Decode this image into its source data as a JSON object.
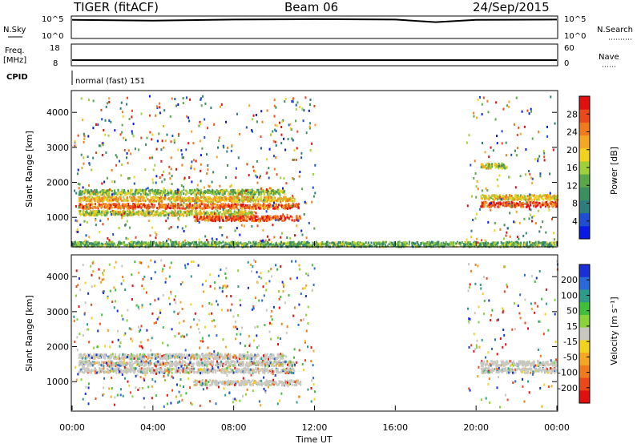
{
  "header": {
    "station": "TIGER (fitACF)",
    "beam": "Beam 06",
    "date": "24/Sep/2015"
  },
  "top_panels": {
    "nsky_label": "N.Sky",
    "nsky_ticks": [
      "10^5",
      "10^0"
    ],
    "nsearch_label": "N.Search",
    "freq_label": "Freq.",
    "freq_unit": "[MHz]",
    "freq_ticks": [
      "18",
      "8"
    ],
    "nave_label": "Nave",
    "nave_ticks": [
      "60",
      "0"
    ],
    "cpid_label": "CPID",
    "cpid_text": "normal (fast) 151"
  },
  "chart_data": [
    {
      "type": "heatmap",
      "title": "",
      "xlabel": "Time UT",
      "ylabel": "Slant Range [km]",
      "x_ticks": [
        "00:00",
        "04:00",
        "08:00",
        "12:00",
        "16:00",
        "20:00",
        "00:00"
      ],
      "x_range_hours": [
        0,
        24
      ],
      "y_ticks": [
        1000,
        2000,
        3000,
        4000
      ],
      "y_range_km": [
        180,
        4600
      ],
      "colorbar": {
        "label": "Power [dB]",
        "ticks": [
          "4",
          "8",
          "12",
          "16",
          "20",
          "24",
          "28"
        ],
        "colors": [
          "#0a1ae6",
          "#1f4fd0",
          "#2e7d7d",
          "#3b8f5f",
          "#5aa64a",
          "#9fcf3a",
          "#f2d21e",
          "#f5a623",
          "#f07a1e",
          "#e8481a",
          "#e01010"
        ]
      },
      "echo_bands": [
        {
          "t_start": 0.3,
          "t_end": 10.5,
          "r_km": 1750,
          "level": 0.45
        },
        {
          "t_start": 0.3,
          "t_end": 11.0,
          "r_km": 1550,
          "level": 0.65
        },
        {
          "t_start": 0.3,
          "t_end": 11.2,
          "r_km": 1350,
          "level": 0.8
        },
        {
          "t_start": 0.3,
          "t_end": 9.0,
          "r_km": 1150,
          "level": 0.55
        },
        {
          "t_start": 6.0,
          "t_end": 11.3,
          "r_km": 1000,
          "level": 0.85
        },
        {
          "t_start": 20.2,
          "t_end": 24.0,
          "r_km": 1600,
          "level": 0.6
        },
        {
          "t_start": 20.2,
          "t_end": 24.0,
          "r_km": 1400,
          "level": 0.85
        },
        {
          "t_start": 20.2,
          "t_end": 21.5,
          "r_km": 2500,
          "level": 0.5
        },
        {
          "t_start": 0.0,
          "t_end": 24.0,
          "r_km": 260,
          "level": 0.4
        }
      ]
    },
    {
      "type": "heatmap",
      "title": "",
      "xlabel": "Time UT",
      "ylabel": "Slant Range [km]",
      "x_ticks": [
        "00:00",
        "04:00",
        "08:00",
        "12:00",
        "16:00",
        "20:00",
        "00:00"
      ],
      "x_range_hours": [
        0,
        24
      ],
      "y_ticks": [
        1000,
        2000,
        3000,
        4000
      ],
      "y_range_km": [
        180,
        4600
      ],
      "colorbar": {
        "label": "Velocity [m s⁻¹]",
        "ticks": [
          "200",
          "100",
          "50",
          "15",
          "-15",
          "-50",
          "-100",
          "-200"
        ],
        "colors": [
          "#1a2fd6",
          "#2a6ad8",
          "#2e9a8a",
          "#3fbf3a",
          "#8ad23a",
          "#c8c8c0",
          "#f2d21e",
          "#f5a623",
          "#f07a1e",
          "#e8481a",
          "#e01010"
        ]
      },
      "echo_bands": [
        {
          "t_start": 0.3,
          "t_end": 10.5,
          "r_km": 1750,
          "v": 0
        },
        {
          "t_start": 0.3,
          "t_end": 11.0,
          "r_km": 1550,
          "v": 0
        },
        {
          "t_start": 0.3,
          "t_end": 11.0,
          "r_km": 1350,
          "v": 0
        },
        {
          "t_start": 6.0,
          "t_end": 11.3,
          "r_km": 1000,
          "v": 0
        },
        {
          "t_start": 20.2,
          "t_end": 24.0,
          "r_km": 1550,
          "v": 0
        },
        {
          "t_start": 20.2,
          "t_end": 24.0,
          "r_km": 1350,
          "v": 0
        }
      ]
    }
  ],
  "nsky_series": [
    {
      "t": 0.0,
      "v": 4.8
    },
    {
      "t": 4.0,
      "v": 4.6
    },
    {
      "t": 8.0,
      "v": 4.9
    },
    {
      "t": 12.0,
      "v": 5.0
    },
    {
      "t": 16.0,
      "v": 4.9
    },
    {
      "t": 18.0,
      "v": 4.2
    },
    {
      "t": 20.0,
      "v": 4.8
    },
    {
      "t": 24.0,
      "v": 4.9
    }
  ]
}
